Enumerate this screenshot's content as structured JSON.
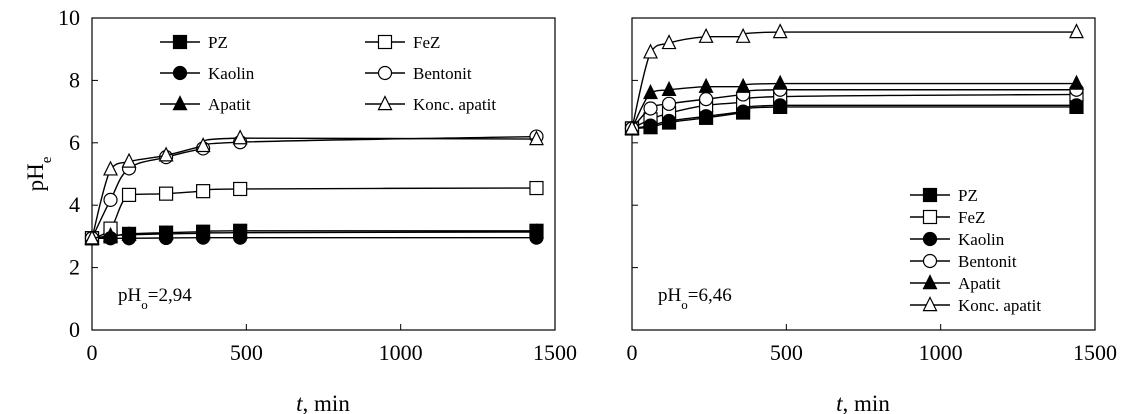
{
  "chart_data": [
    {
      "type": "line",
      "x": [
        0,
        60,
        120,
        240,
        360,
        480,
        1440
      ],
      "xlim": [
        0,
        1500
      ],
      "ylim": [
        0,
        10
      ],
      "xticks": [
        0,
        500,
        1000,
        1500
      ],
      "yticks": [
        0,
        2,
        4,
        6,
        8,
        10
      ],
      "x_tick_labels": [
        "0",
        "500",
        "1000",
        "1500"
      ],
      "y_tick_labels": [
        "0",
        "2",
        "4",
        "6",
        "8",
        "10"
      ],
      "xlabel_italic": "t",
      "xlabel_rest": ", min",
      "ylabel_main": "pH",
      "ylabel_sub": "e",
      "annotation_main": "pH",
      "annotation_sub": "o",
      "annotation_value": "=2,94",
      "legend_placement": "top",
      "series": [
        {
          "name": "PZ",
          "marker": "square-filled",
          "values": [
            2.94,
            3.0,
            3.08,
            3.12,
            3.15,
            3.18,
            3.18
          ]
        },
        {
          "name": "FeZ",
          "marker": "square-open",
          "values": [
            2.94,
            3.25,
            4.33,
            4.37,
            4.45,
            4.52,
            4.55
          ]
        },
        {
          "name": "Kaolin",
          "marker": "circle-filled",
          "values": [
            2.94,
            2.94,
            2.94,
            2.95,
            2.96,
            2.96,
            2.96
          ]
        },
        {
          "name": "Bentonit",
          "marker": "circle-open",
          "values": [
            2.94,
            4.17,
            5.18,
            5.54,
            5.82,
            6.02,
            6.2
          ]
        },
        {
          "name": "Apatit",
          "marker": "triangle-filled",
          "values": [
            2.94,
            3.02,
            3.05,
            3.08,
            3.1,
            3.12,
            3.14
          ]
        },
        {
          "name": "Konc. apatit",
          "marker": "triangle-open",
          "values": [
            2.94,
            5.15,
            5.4,
            5.6,
            5.9,
            6.15,
            6.12
          ]
        }
      ]
    },
    {
      "type": "line",
      "x": [
        0,
        60,
        120,
        240,
        360,
        480,
        1440
      ],
      "xlim": [
        0,
        1500
      ],
      "ylim": [
        0,
        10
      ],
      "xticks": [
        0,
        500,
        1000,
        1500
      ],
      "yticks": [
        0,
        2,
        4,
        6,
        8,
        10
      ],
      "x_tick_labels": [
        "0",
        "500",
        "1000",
        "1500"
      ],
      "xlabel_italic": "t",
      "xlabel_rest": ", min",
      "annotation_main": "pH",
      "annotation_sub": "o",
      "annotation_value": "=6,46",
      "legend_placement": "bottom-right",
      "series": [
        {
          "name": "PZ",
          "marker": "square-filled",
          "values": [
            6.46,
            6.5,
            6.65,
            6.8,
            6.97,
            7.15,
            7.15
          ]
        },
        {
          "name": "FeZ",
          "marker": "square-open",
          "values": [
            6.46,
            6.75,
            6.95,
            7.2,
            7.3,
            7.48,
            7.55
          ]
        },
        {
          "name": "Kaolin",
          "marker": "circle-filled",
          "values": [
            6.46,
            6.55,
            6.7,
            6.85,
            7.0,
            7.2,
            7.2
          ]
        },
        {
          "name": "Bentonit",
          "marker": "circle-open",
          "values": [
            6.46,
            7.1,
            7.25,
            7.4,
            7.55,
            7.7,
            7.7
          ]
        },
        {
          "name": "Apatit",
          "marker": "triangle-filled",
          "values": [
            6.46,
            7.6,
            7.7,
            7.8,
            7.8,
            7.9,
            7.9
          ]
        },
        {
          "name": "Konc. apatit",
          "marker": "triangle-open",
          "values": [
            6.46,
            8.9,
            9.2,
            9.4,
            9.4,
            9.55,
            9.55
          ]
        }
      ]
    }
  ]
}
